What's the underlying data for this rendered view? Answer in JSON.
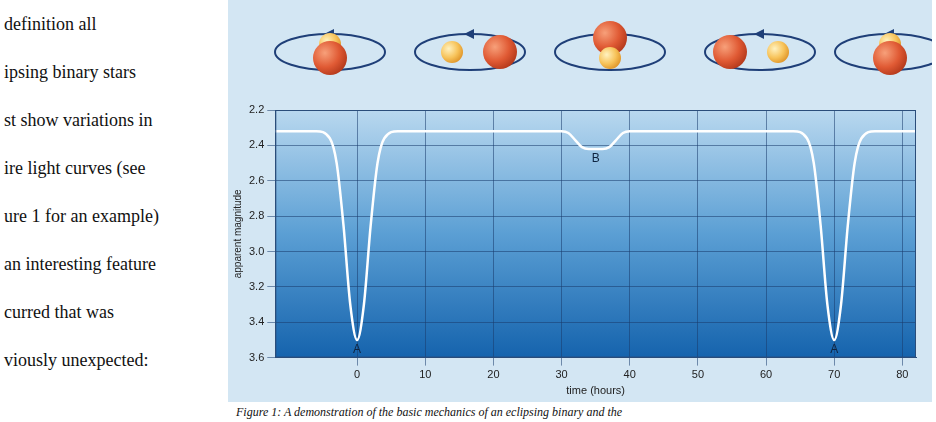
{
  "text_lines": [
    "definition all",
    "ipsing binary stars",
    "st show variations in",
    "ire light curves (see",
    "ure 1 for an example)",
    "an interesting feature",
    "curred that was",
    "viously unexpected:"
  ],
  "caption": "Figure 1: A demonstration of the basic mechanics of an eclipsing binary and the",
  "chart_data": {
    "type": "line",
    "x_label": "time (hours)",
    "y_label": "apparent magnitude",
    "x": [
      -12,
      -6,
      -4,
      -3,
      -2,
      -1,
      0,
      1,
      2,
      3,
      4,
      6,
      30,
      31,
      32,
      33,
      34,
      35,
      36,
      37,
      38,
      39,
      40,
      64,
      66,
      67,
      68,
      69,
      70,
      71,
      72,
      73,
      74,
      76,
      82
    ],
    "values": [
      2.32,
      2.32,
      2.36,
      2.5,
      2.85,
      3.3,
      3.5,
      3.3,
      2.85,
      2.5,
      2.36,
      2.32,
      2.32,
      2.33,
      2.37,
      2.41,
      2.42,
      2.42,
      2.42,
      2.41,
      2.37,
      2.33,
      2.32,
      2.32,
      2.36,
      2.5,
      2.85,
      3.3,
      3.5,
      3.3,
      2.85,
      2.5,
      2.36,
      2.32,
      2.32
    ],
    "color": "#ffffff",
    "xlim": [
      -12,
      82
    ],
    "xticks": [
      0,
      10,
      20,
      30,
      40,
      50,
      60,
      70,
      80
    ],
    "ylim": [
      3.6,
      2.2
    ],
    "yticks": [
      2.2,
      2.4,
      2.6,
      2.8,
      {
        "value": 3,
        "label": "3.0"
      },
      3.2,
      3.4,
      3.6
    ],
    "annotations": [
      {
        "text": "A",
        "x": 0,
        "y": 3.5
      },
      {
        "text": "B",
        "x": 35,
        "y": 2.42
      },
      {
        "text": "A",
        "x": 70,
        "y": 3.5
      }
    ],
    "grid": true
  }
}
